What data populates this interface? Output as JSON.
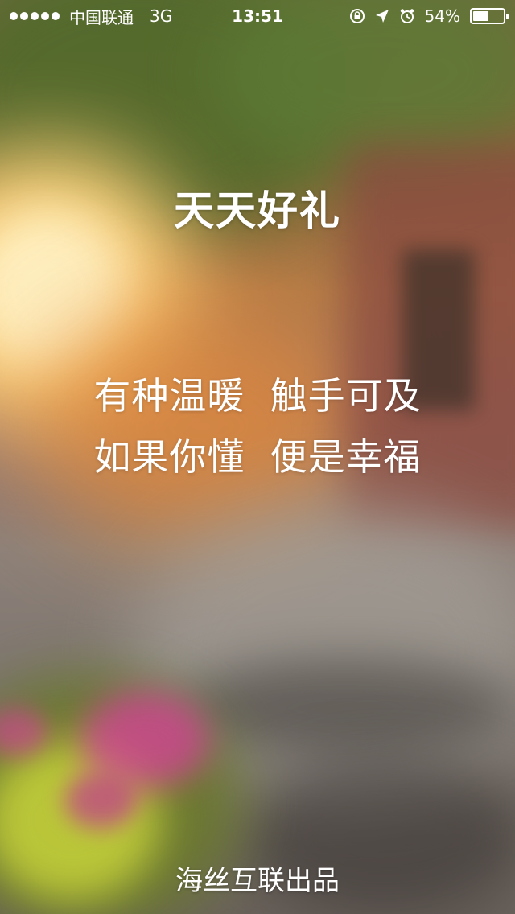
{
  "status_bar": {
    "carrier": "中国联通",
    "network": "3G",
    "time": "13:51",
    "battery": "54%",
    "battery_level": 0.54,
    "icons": [
      "signal-dots-icon",
      "orientation-lock-icon",
      "location-arrow-icon",
      "alarm-icon",
      "battery-icon"
    ]
  },
  "splash": {
    "app_title": "天天好礼",
    "slogan_line1": "有种温暖  触手可及",
    "slogan_line2": "如果你懂  便是幸福",
    "footer": "海丝互联出品"
  },
  "colors": {
    "text": "#ffffff",
    "sun_glow": "#ffcc66",
    "foliage": "#4f6a2a",
    "brick": "#8a4a40",
    "flowers_pink": "#d8409a",
    "flowers_yellow": "#c8d43a"
  }
}
